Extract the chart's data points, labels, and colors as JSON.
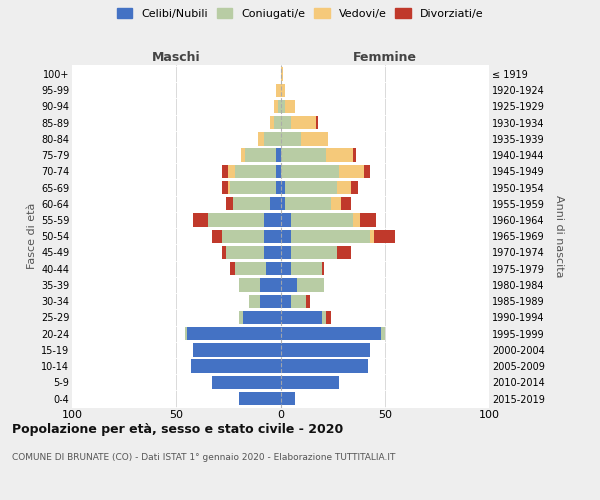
{
  "age_groups": [
    "0-4",
    "5-9",
    "10-14",
    "15-19",
    "20-24",
    "25-29",
    "30-34",
    "35-39",
    "40-44",
    "45-49",
    "50-54",
    "55-59",
    "60-64",
    "65-69",
    "70-74",
    "75-79",
    "80-84",
    "85-89",
    "90-94",
    "95-99",
    "100+"
  ],
  "birth_years": [
    "2015-2019",
    "2010-2014",
    "2005-2009",
    "2000-2004",
    "1995-1999",
    "1990-1994",
    "1985-1989",
    "1980-1984",
    "1975-1979",
    "1970-1974",
    "1965-1969",
    "1960-1964",
    "1955-1959",
    "1950-1954",
    "1945-1949",
    "1940-1944",
    "1935-1939",
    "1930-1934",
    "1925-1929",
    "1920-1924",
    "≤ 1919"
  ],
  "colors": {
    "celibi": "#4472C4",
    "coniugati": "#b8cca4",
    "vedovi": "#f5c97a",
    "divorziati": "#c0392b"
  },
  "male": {
    "celibi": [
      20,
      33,
      43,
      42,
      45,
      18,
      10,
      10,
      7,
      8,
      8,
      8,
      5,
      2,
      2,
      2,
      0,
      0,
      0,
      0,
      0
    ],
    "coniugati": [
      0,
      0,
      0,
      0,
      1,
      2,
      5,
      10,
      15,
      18,
      20,
      27,
      18,
      22,
      20,
      15,
      8,
      3,
      1,
      0,
      0
    ],
    "vedovi": [
      0,
      0,
      0,
      0,
      0,
      0,
      0,
      0,
      0,
      0,
      0,
      0,
      0,
      1,
      3,
      2,
      3,
      2,
      2,
      2,
      0
    ],
    "divorziati": [
      0,
      0,
      0,
      0,
      0,
      0,
      0,
      0,
      2,
      2,
      5,
      7,
      3,
      3,
      3,
      0,
      0,
      0,
      0,
      0,
      0
    ]
  },
  "female": {
    "celibi": [
      7,
      28,
      42,
      43,
      48,
      20,
      5,
      8,
      5,
      5,
      5,
      5,
      2,
      2,
      0,
      0,
      0,
      0,
      0,
      0,
      0
    ],
    "coniugati": [
      0,
      0,
      0,
      0,
      2,
      2,
      7,
      13,
      15,
      22,
      38,
      30,
      22,
      25,
      28,
      22,
      10,
      5,
      2,
      0,
      0
    ],
    "vedovi": [
      0,
      0,
      0,
      0,
      0,
      0,
      0,
      0,
      0,
      0,
      2,
      3,
      5,
      7,
      12,
      13,
      13,
      12,
      5,
      2,
      1
    ],
    "divorziati": [
      0,
      0,
      0,
      0,
      0,
      2,
      2,
      0,
      1,
      7,
      10,
      8,
      5,
      3,
      3,
      1,
      0,
      1,
      0,
      0,
      0
    ]
  },
  "title": "Popolazione per età, sesso e stato civile - 2020",
  "subtitle": "COMUNE DI BRUNATE (CO) - Dati ISTAT 1° gennaio 2020 - Elaborazione TUTTITALIA.IT",
  "label_maschi": "Maschi",
  "label_femmine": "Femmine",
  "ylabel_left": "Fasce di età",
  "ylabel_right": "Anni di nascita",
  "xlim": 100,
  "background_color": "#eeeeee",
  "plot_background": "#ffffff"
}
